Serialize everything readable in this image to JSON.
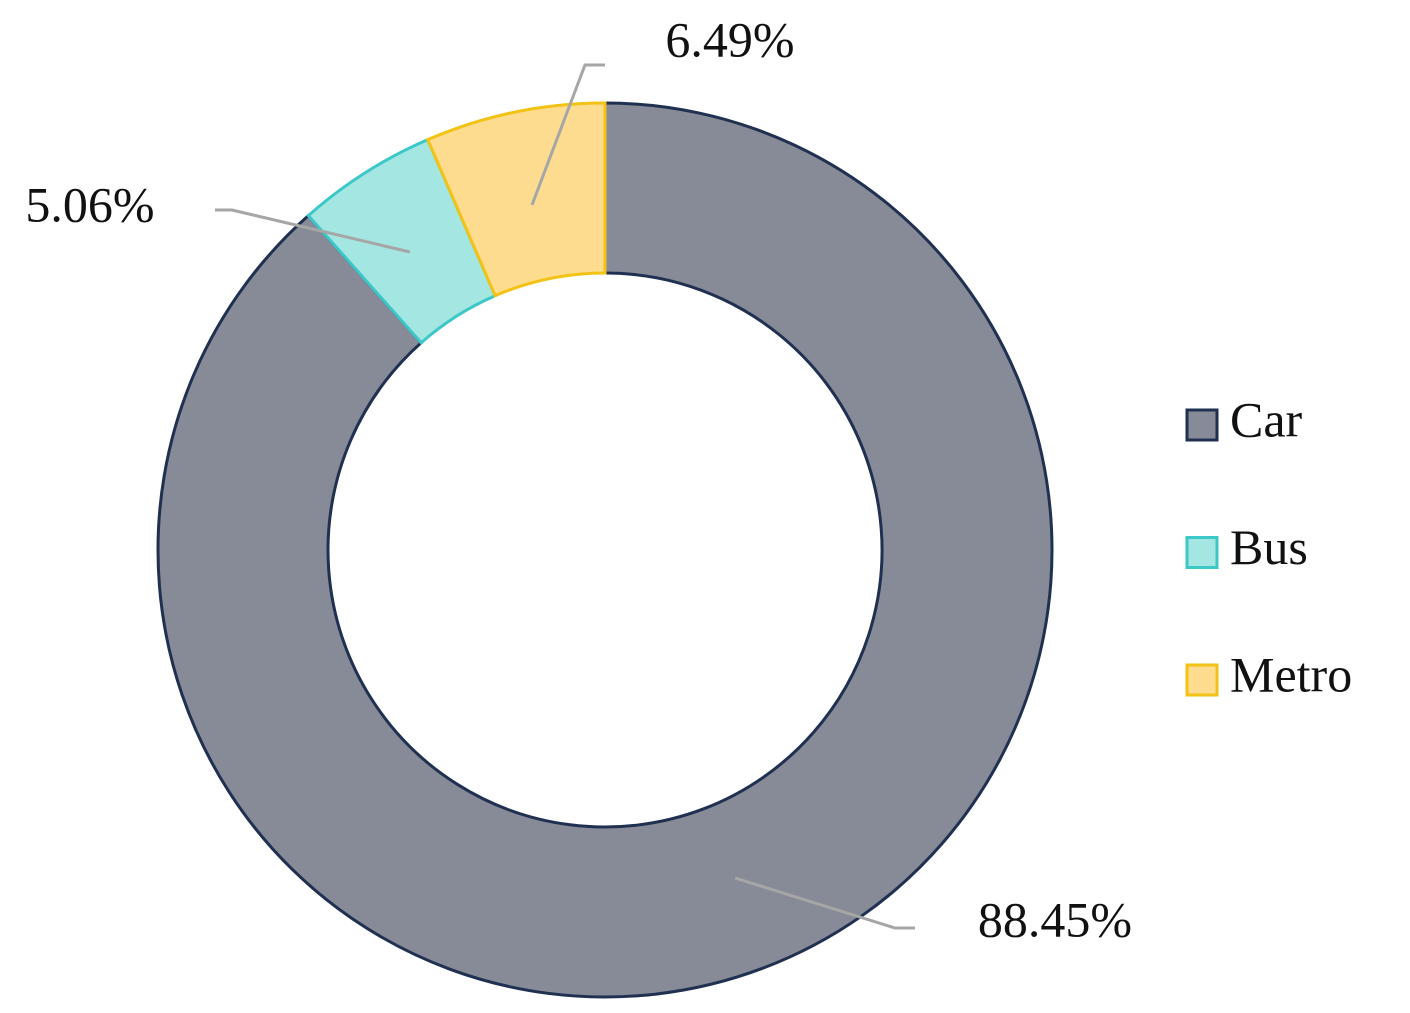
{
  "chart_data": {
    "type": "donut",
    "categories": [
      "Car",
      "Bus",
      "Metro"
    ],
    "values": [
      88.45,
      5.06,
      6.49
    ],
    "value_labels": [
      "88.45%",
      "5.06%",
      "6.49%"
    ],
    "colors": [
      "#878a97",
      "#a3e6e2",
      "#fddc8f"
    ],
    "edge_colors": [
      "#1f3050",
      "#3cc8c8",
      "#f2c315"
    ],
    "legend": "right"
  }
}
